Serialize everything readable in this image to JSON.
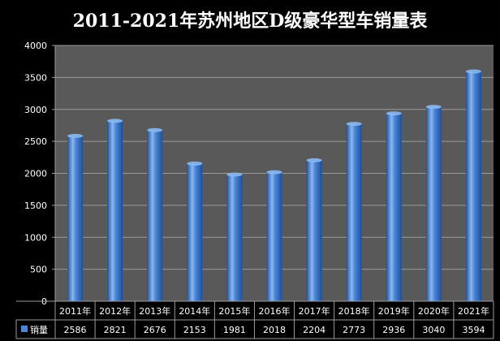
{
  "chart_data": {
    "type": "bar",
    "title": "2011-2021年苏州地区D级豪华型车销量表",
    "categories": [
      "2011年",
      "2012年",
      "2013年",
      "2014年",
      "2015年",
      "2016年",
      "2017年",
      "2018年",
      "2019年",
      "2020年",
      "2021年"
    ],
    "series": [
      {
        "name": "销量",
        "values": [
          2586,
          2821,
          2676,
          2153,
          1981,
          2018,
          2204,
          2773,
          2936,
          3040,
          3594
        ]
      }
    ],
    "ylim": [
      0,
      4000
    ],
    "yticks": [
      0,
      500,
      1000,
      1500,
      2000,
      2500,
      3000,
      3500,
      4000
    ],
    "grid": true,
    "legend": "data-table-left",
    "data_table": true,
    "colors": {
      "background": "#000000",
      "plot_area": "#595959",
      "bar": "#4a86d8",
      "bar_light": "#8ab8f0",
      "bar_dark": "#1f4f9a",
      "grid": "#9a9a9a",
      "text": "#ffffff"
    }
  }
}
